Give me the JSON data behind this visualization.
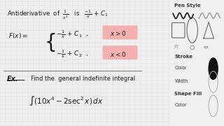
{
  "main_bg": "#f0f0f0",
  "grid_color": "#d8d8d8",
  "panel_bg": "#e0e0e0",
  "text_color": "#1a1a1a",
  "highlight_pink": "#f5b0b0",
  "antideriv_line": "Antiderivative  of  $\\frac{1}{x^2}$   is   $\\frac{-1}{x}$ + $C_1$",
  "fx_label": "$F(x) =$",
  "piece1": "$-\\frac{1}{x}$ + $C_1$  ,",
  "piece2": "$-\\frac{1}{x}$ + $C_2$  ,",
  "cond1": "$x > 0$",
  "cond2": "$x < 0$",
  "ex_label": "Ex.",
  "find_text": "Find the  general indefinite integral",
  "integral": "$\\int (10x^4 - 2\\sec^2 x)\\, dx$",
  "panel_title": "Pen Style",
  "stroke_label": "Stroke",
  "color_label": "Color",
  "width_label": "Width",
  "shapefill_label": "Shape Fill",
  "figsize": [
    3.2,
    1.8
  ],
  "dpi": 100
}
